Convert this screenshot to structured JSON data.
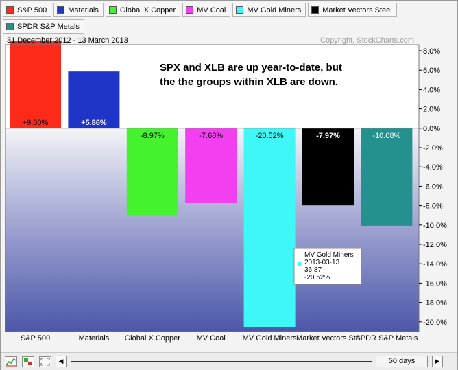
{
  "legend": [
    {
      "name": "S&P 500",
      "color": "#ff2a1a"
    },
    {
      "name": "Materials",
      "color": "#1f35c8"
    },
    {
      "name": "Global X Copper",
      "color": "#44f22e"
    },
    {
      "name": "MV Coal",
      "color": "#f23ff0"
    },
    {
      "name": "MV Gold Miners",
      "color": "#3ff7f7"
    },
    {
      "name": "Market Vectors Steel",
      "color": "#000000"
    },
    {
      "name": "SPDR S&P Metals",
      "color": "#25918f"
    }
  ],
  "chart_data": {
    "type": "bar",
    "date_range": "31 December 2012 - 13 March 2013",
    "copyright": "Copyright, StockCharts.com",
    "annotation_lines": [
      "SPX and XLB are up year-to-date, but",
      "the the groups within XLB are down."
    ],
    "categories": [
      "S&P 500",
      "Materials",
      "Global X Copper",
      "MV Coal",
      "MV Gold Miners",
      "Market Vectors Ste",
      "SPDR S&P Metals"
    ],
    "values": [
      9.0,
      5.86,
      -8.97,
      -7.68,
      -20.52,
      -7.97,
      -10.08
    ],
    "value_labels": [
      "+9.00%",
      "+5.86%",
      "-8.97%",
      "-7.68%",
      "-20.52%",
      "-7.97%",
      "-10.08%"
    ],
    "colors": [
      "#ff2a1a",
      "#1f35c8",
      "#44f22e",
      "#f23ff0",
      "#3ff7f7",
      "#000000",
      "#25918f"
    ],
    "ylim": [
      -20.5,
      8.5
    ],
    "yticks": [
      8,
      6,
      4,
      2,
      0,
      -2,
      -4,
      -6,
      -8,
      -10,
      -12,
      -14,
      -16,
      -18,
      -20
    ],
    "ytick_labels": [
      "8.0%",
      "6.0%",
      "4.0%",
      "2.0%",
      "0.0%",
      "-2.0%",
      "-4.0%",
      "-6.0%",
      "-8.0%",
      "-10.0%",
      "-12.0%",
      "-14.0%",
      "-16.0%",
      "-18.0%",
      "-20.0%"
    ],
    "grid": false,
    "tooltip": {
      "lines": [
        "MV Gold Miners",
        "2013-03-13",
        "36.87",
        "-20.52%"
      ],
      "color": "#3ff7f7",
      "series_index": 4
    }
  },
  "controls": {
    "period": "50 days",
    "scroll_left_icon": "triangle-left",
    "scroll_right_icon": "triangle-right"
  }
}
